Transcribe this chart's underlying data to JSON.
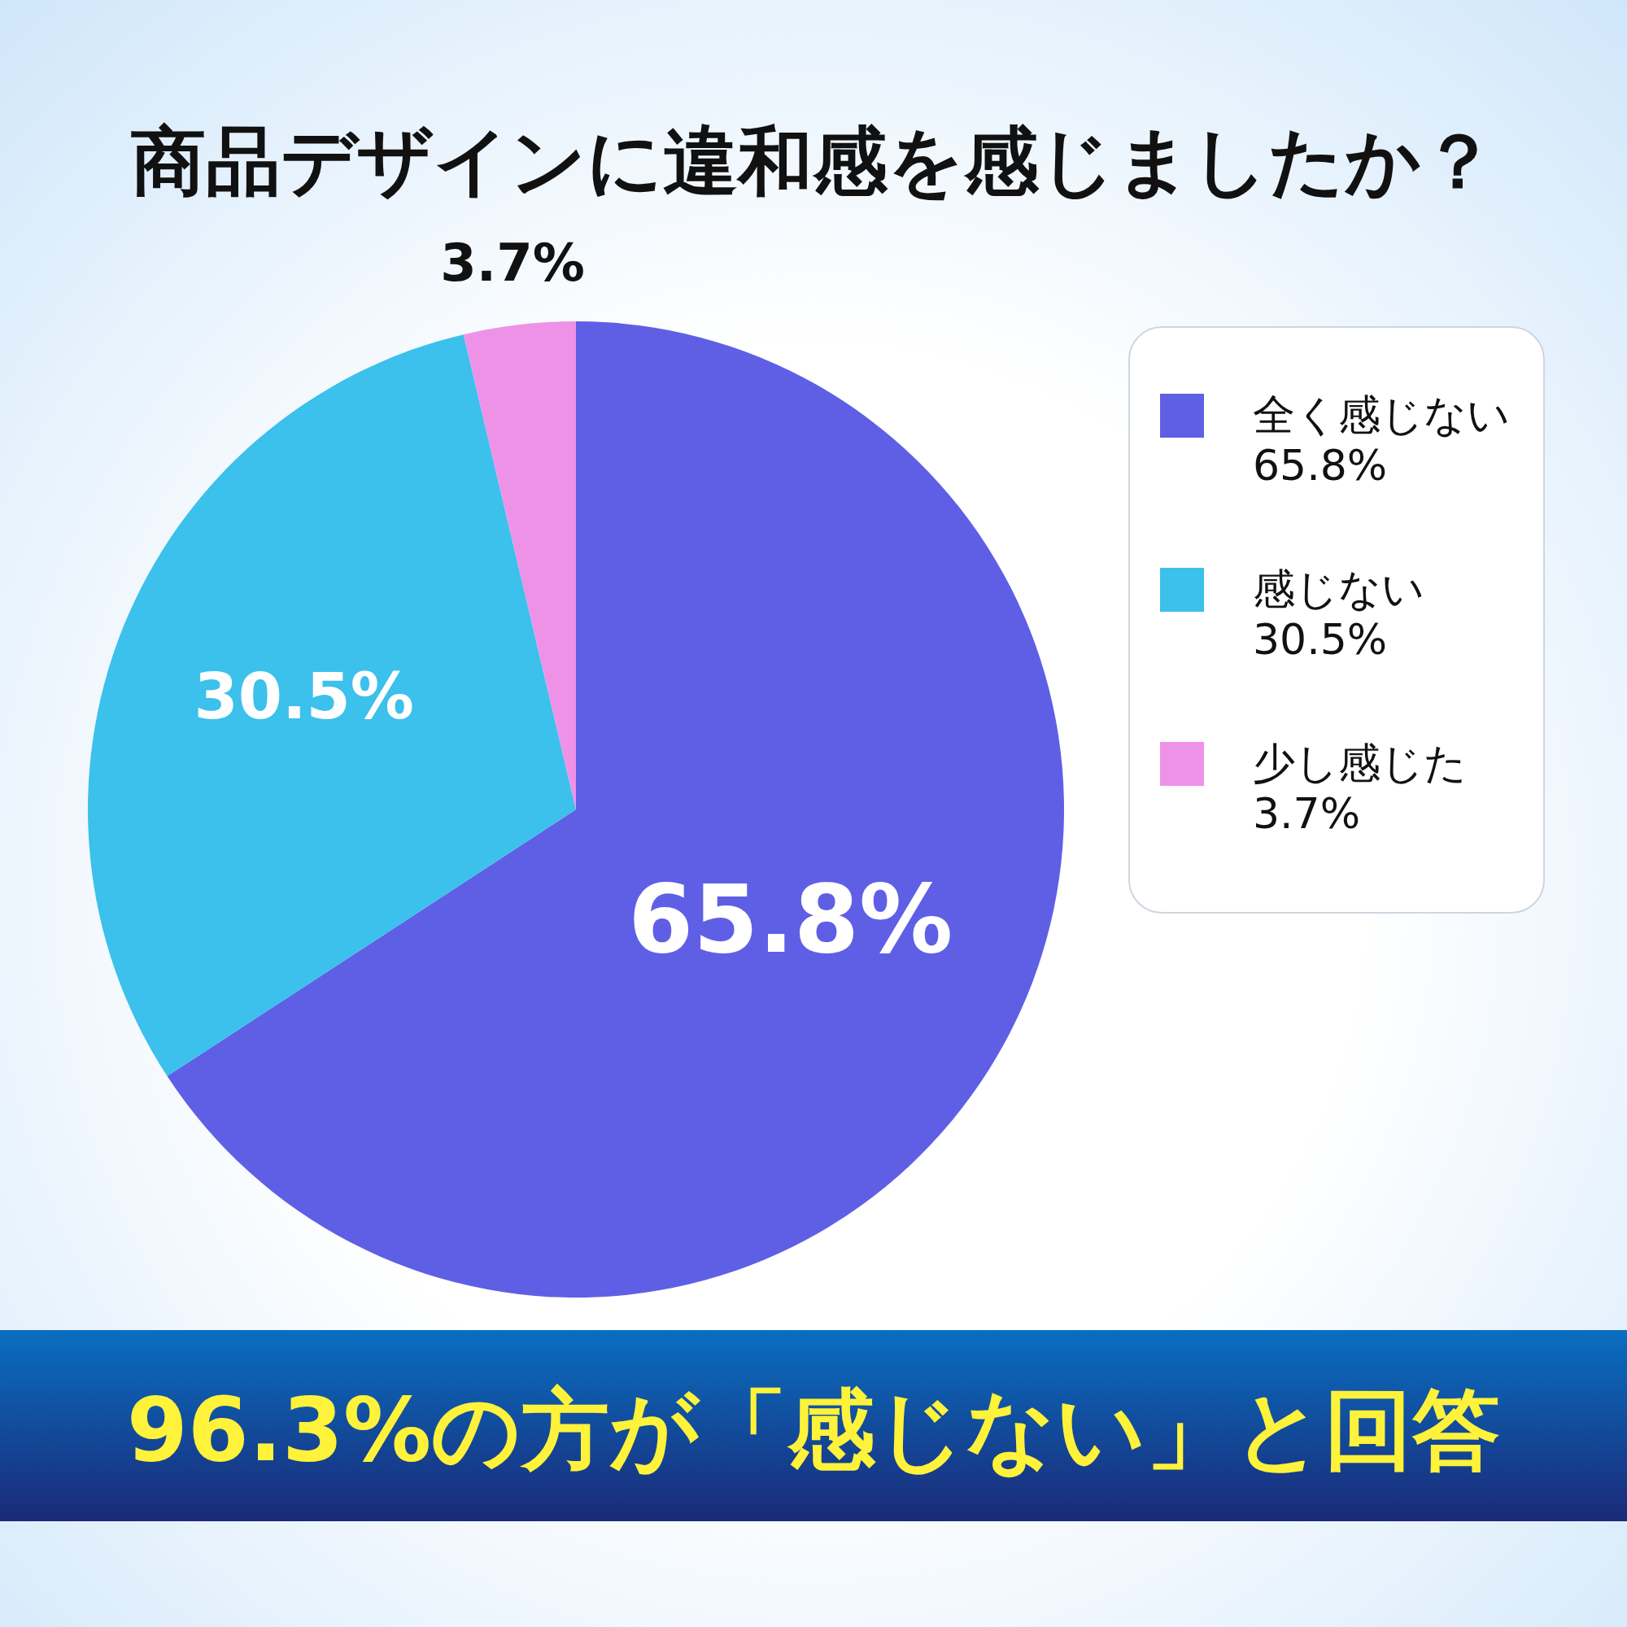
{
  "chart_data": {
    "type": "pie",
    "title": "商品デザインに違和感を感じましたか？",
    "categories": [
      "全く感じない",
      "感じない",
      "少し感じた"
    ],
    "values": [
      65.8,
      30.5,
      3.7
    ],
    "colors": [
      "#5f5fe6",
      "#3cc0ec",
      "#ee92e8"
    ],
    "value_labels": [
      "65.8%",
      "30.5%",
      "3.7%"
    ],
    "legend": "right",
    "annotations": [
      "96.3%の方が「感じない」と回答"
    ]
  }
}
